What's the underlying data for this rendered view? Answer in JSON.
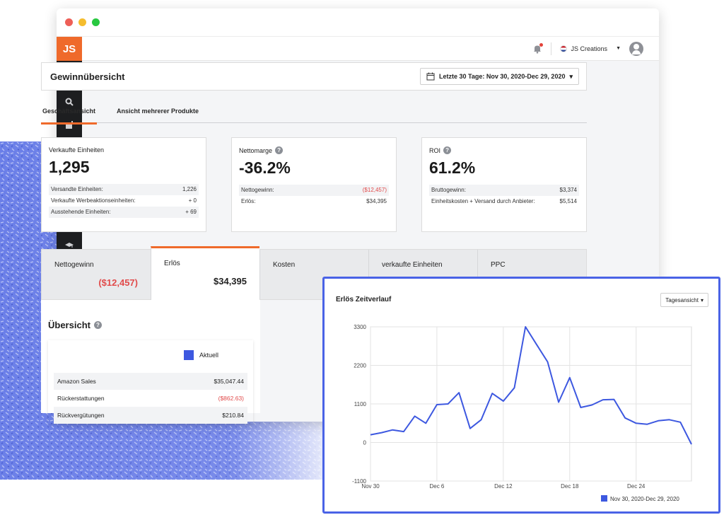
{
  "app": {
    "logo_text": "JS",
    "accent_color": "#ef6a2b",
    "sidebar_icons": [
      "store-icon",
      "search-icon",
      "factory-icon",
      "wand-icon",
      "megaphone-icon",
      "profit-chart-icon",
      "graduation-icon",
      "academy-icon",
      "globe-icon",
      "cart-icon"
    ]
  },
  "topbar": {
    "account_name": "JS Creations"
  },
  "header": {
    "title": "Gewinnübersicht",
    "date_range": "Letzte 30 Tage: Nov 30, 2020-Dec 29, 2020"
  },
  "tabs": [
    {
      "label": "Geschäftsansicht",
      "active": true
    },
    {
      "label": "Ansicht mehrerer Produkte",
      "active": false
    }
  ],
  "metrics": {
    "units": {
      "label": "Verkaufte Einheiten",
      "value": "1,295",
      "rows": [
        {
          "label": "Versandte Einheiten:",
          "value": "1,226"
        },
        {
          "label": "Verkaufte Werbeaktionseinheiten:",
          "value": "+ 0"
        },
        {
          "label": "Ausstehende Einheiten:",
          "value": "+ 69"
        }
      ]
    },
    "margin": {
      "label": "Nettomarge",
      "value": "-36.2%",
      "rows": [
        {
          "label": "Nettogewinn:",
          "value": "($12,457)"
        },
        {
          "label": "Erlös:",
          "value": "$34,395"
        }
      ]
    },
    "roi": {
      "label": "ROI",
      "value": "61.2%",
      "rows": [
        {
          "label": "Bruttogewinn:",
          "value": "$3,374"
        },
        {
          "label": "Einheitskosten + Versand durch Anbieter:",
          "value": "$5,514"
        }
      ]
    }
  },
  "metric_tabs": [
    {
      "label": "Nettogewinn",
      "value": "($12,457)"
    },
    {
      "label": "Erlös",
      "value": "$34,395"
    },
    {
      "label": "Kosten",
      "value": ""
    },
    {
      "label": "verkaufte Einheiten",
      "value": ""
    },
    {
      "label": "PPC",
      "value": ""
    }
  ],
  "overview": {
    "title": "Übersicht",
    "legend_label": "Aktuell",
    "legend_color": "#3d58e0",
    "rows": [
      {
        "label": "Amazon Sales",
        "value": "$35,047.44"
      },
      {
        "label": "Rückerstattungen",
        "value": "($862.63)"
      },
      {
        "label": "Rückvergütungen",
        "value": "$210.84"
      }
    ]
  },
  "revenue_chart": {
    "title": "Erlös Zeitverlauf",
    "view_select": "Tagesansicht"
  },
  "chart_data": {
    "type": "line",
    "title": "Erlös Zeitverlauf",
    "x": [
      "Nov 30",
      "Dec 1",
      "Dec 2",
      "Dec 3",
      "Dec 4",
      "Dec 5",
      "Dec 6",
      "Dec 7",
      "Dec 8",
      "Dec 9",
      "Dec 10",
      "Dec 11",
      "Dec 12",
      "Dec 13",
      "Dec 14",
      "Dec 15",
      "Dec 16",
      "Dec 17",
      "Dec 18",
      "Dec 19",
      "Dec 20",
      "Dec 21",
      "Dec 22",
      "Dec 23",
      "Dec 24",
      "Dec 25",
      "Dec 26",
      "Dec 27",
      "Dec 28",
      "Dec 29"
    ],
    "x_tick_labels": [
      "Nov 30",
      "Dec 6",
      "Dec 12",
      "Dec 18",
      "Dec 24"
    ],
    "y_ticks": [
      -1100,
      0,
      1100,
      2200,
      3300
    ],
    "ylim": [
      -1100,
      3300
    ],
    "series": [
      {
        "name": "Nov 30, 2020-Dec 29, 2020",
        "color": "#3d58e0",
        "values": [
          220,
          280,
          360,
          310,
          750,
          550,
          1080,
          1100,
          1420,
          400,
          650,
          1400,
          1180,
          1560,
          3300,
          2800,
          2300,
          1150,
          1850,
          1000,
          1070,
          1220,
          1230,
          700,
          550,
          520,
          620,
          650,
          580,
          -50
        ]
      }
    ],
    "grid": true,
    "legend_position": "bottom-right"
  }
}
